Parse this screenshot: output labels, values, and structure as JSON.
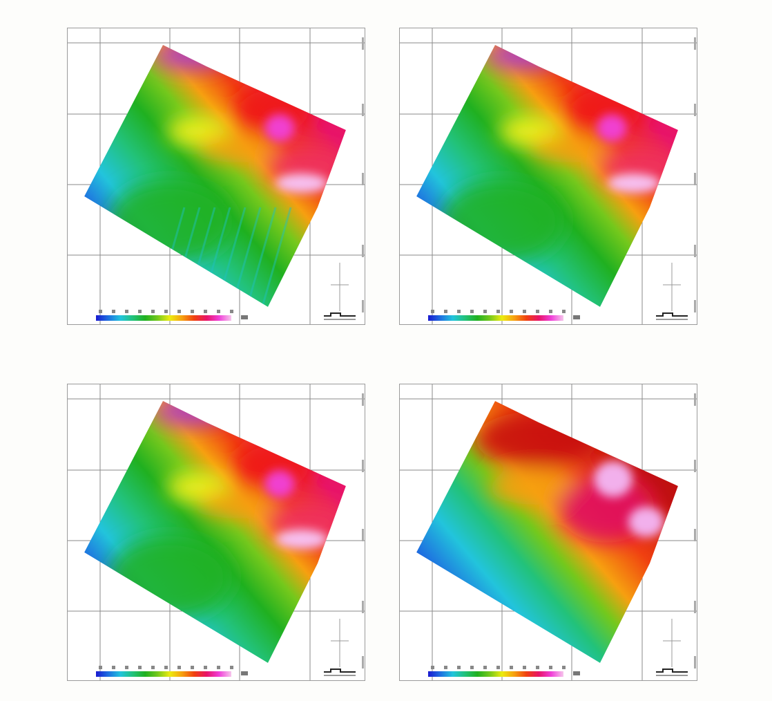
{
  "colors": {
    "ramp": [
      "#1a1ad0",
      "#1e6fe0",
      "#22c4dc",
      "#22c27a",
      "#20b020",
      "#74c81c",
      "#ecec10",
      "#f6a010",
      "#f04010",
      "#e81468",
      "#f040d8",
      "#f6c6ec"
    ],
    "grid": "#8a8a8a",
    "frame": "#9a9a9a"
  },
  "panels": [
    {
      "variant": "shaded",
      "legend_marks": 11
    },
    {
      "variant": "smooth",
      "legend_marks": 11
    },
    {
      "variant": "smooth",
      "legend_marks": 11
    },
    {
      "variant": "shifted",
      "legend_marks": 11
    }
  ],
  "icons": [
    "north-arrow-icon",
    "scale-bar-icon"
  ]
}
